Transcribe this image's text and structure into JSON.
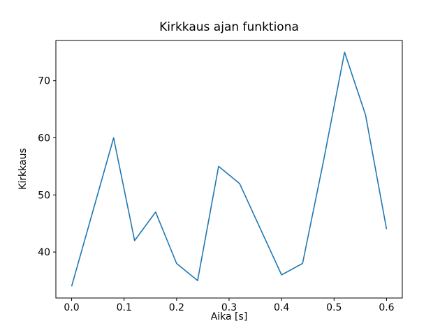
{
  "chart_data": {
    "type": "line",
    "title": "Kirkkaus ajan funktiona",
    "xlabel": "Aika [s]",
    "ylabel": "Kirkkaus",
    "x": [
      0.0,
      0.04,
      0.08,
      0.12,
      0.16,
      0.2,
      0.24,
      0.28,
      0.32,
      0.36,
      0.4,
      0.44,
      0.48,
      0.52,
      0.56,
      0.6
    ],
    "y": [
      34,
      47,
      60,
      42,
      47,
      38,
      35,
      55,
      52,
      44,
      36,
      38,
      56,
      75,
      64,
      44
    ],
    "xlim": [
      -0.03,
      0.63
    ],
    "ylim": [
      31.95,
      77.05
    ],
    "xticks": [
      0.0,
      0.1,
      0.2,
      0.3,
      0.4,
      0.5,
      0.6
    ],
    "xtick_labels": [
      "0.0",
      "0.1",
      "0.2",
      "0.3",
      "0.4",
      "0.5",
      "0.6"
    ],
    "yticks": [
      40,
      50,
      60,
      70
    ],
    "ytick_labels": [
      "40",
      "50",
      "60",
      "70"
    ],
    "line_color": "#1f77b4",
    "axis_color": "#000000",
    "background_color": "#ffffff",
    "grid": false,
    "legend": null
  }
}
